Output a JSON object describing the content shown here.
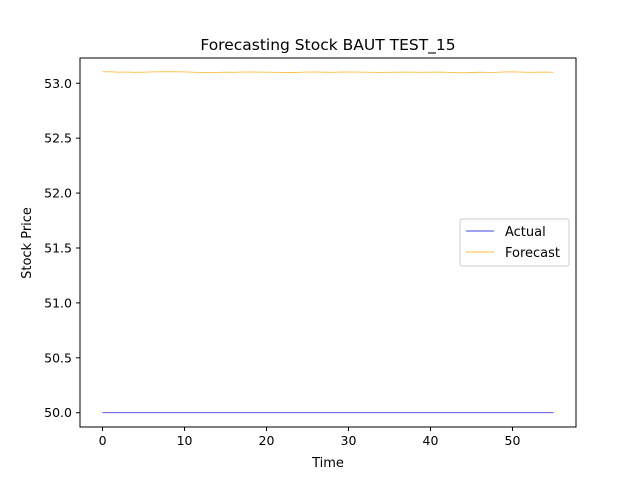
{
  "chart_data": {
    "type": "line",
    "title": "Forecasting Stock BAUT TEST_15",
    "xlabel": "Time",
    "ylabel": "Stock Price",
    "xlim": [
      -2.75,
      57.75
    ],
    "ylim": [
      49.87,
      53.23
    ],
    "x_ticks": [
      0,
      10,
      20,
      30,
      40,
      50
    ],
    "y_ticks": [
      50.0,
      50.5,
      51.0,
      51.5,
      52.0,
      52.5,
      53.0
    ],
    "grid": false,
    "legend": {
      "placement": "center-right",
      "entries": [
        "Actual",
        "Forecast"
      ]
    },
    "x": [
      0,
      1,
      2,
      3,
      4,
      5,
      6,
      7,
      8,
      9,
      10,
      11,
      12,
      13,
      14,
      15,
      16,
      17,
      18,
      19,
      20,
      21,
      22,
      23,
      24,
      25,
      26,
      27,
      28,
      29,
      30,
      31,
      32,
      33,
      34,
      35,
      36,
      37,
      38,
      39,
      40,
      41,
      42,
      43,
      44,
      45,
      46,
      47,
      48,
      49,
      50,
      51,
      52,
      53,
      54,
      55
    ],
    "series": [
      {
        "name": "Actual",
        "color": "#0000cc",
        "values": [
          50.0,
          50.0,
          50.0,
          50.0,
          50.0,
          50.0,
          50.0,
          50.0,
          50.0,
          50.0,
          50.0,
          50.0,
          50.0,
          50.0,
          50.0,
          50.0,
          50.0,
          50.0,
          50.0,
          50.0,
          50.0,
          50.0,
          50.0,
          50.0,
          50.0,
          50.0,
          50.0,
          50.0,
          50.0,
          50.0,
          50.0,
          50.0,
          50.0,
          50.0,
          50.0,
          50.0,
          50.0,
          50.0,
          50.0,
          50.0,
          50.0,
          50.0,
          50.0,
          50.0,
          50.0,
          50.0,
          50.0,
          50.0,
          50.0,
          50.0,
          50.0,
          50.0,
          50.0,
          50.0,
          50.0,
          50.0
        ]
      },
      {
        "name": "Forecast",
        "color": "#ffa500",
        "values": [
          53.105,
          53.104,
          53.101,
          53.102,
          53.1,
          53.101,
          53.103,
          53.104,
          53.105,
          53.104,
          53.103,
          53.101,
          53.099,
          53.097,
          53.099,
          53.101,
          53.1,
          53.102,
          53.103,
          53.102,
          53.101,
          53.1,
          53.099,
          53.098,
          53.1,
          53.102,
          53.103,
          53.101,
          53.1,
          53.102,
          53.103,
          53.102,
          53.101,
          53.1,
          53.099,
          53.1,
          53.101,
          53.102,
          53.101,
          53.1,
          53.101,
          53.102,
          53.1,
          53.097,
          53.095,
          53.098,
          53.101,
          53.099,
          53.1,
          53.103,
          53.104,
          53.102,
          53.1,
          53.101,
          53.102,
          53.1
        ]
      }
    ]
  }
}
